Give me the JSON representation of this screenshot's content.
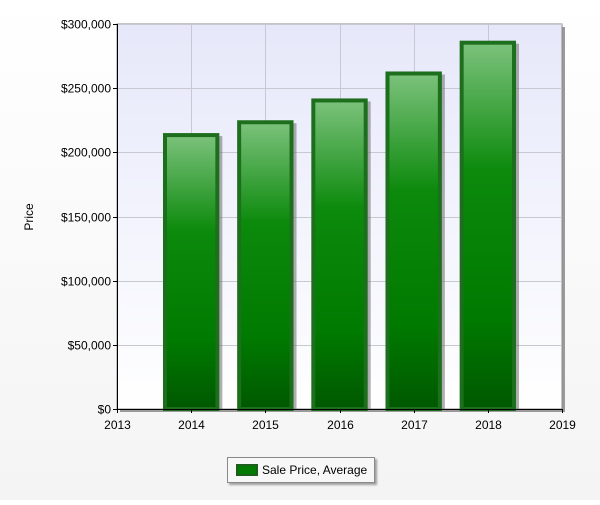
{
  "chart_data": {
    "type": "bar",
    "title": "",
    "xlabel": "",
    "ylabel": "Price",
    "x_ticks": [
      "2013",
      "2014",
      "2015",
      "2016",
      "2017",
      "2018",
      "2019"
    ],
    "xlim": [
      2013,
      2019
    ],
    "y_ticks": [
      "$0",
      "$50,000",
      "$100,000",
      "$150,000",
      "$200,000",
      "$250,000",
      "$300,000"
    ],
    "ylim": [
      0,
      300000
    ],
    "grid": true,
    "legend": "bottom-center",
    "series": [
      {
        "name": "Sale Price, Average",
        "color": "#007a00",
        "points": [
          {
            "x": 2014,
            "y": 215000
          },
          {
            "x": 2015,
            "y": 225000
          },
          {
            "x": 2016,
            "y": 242000
          },
          {
            "x": 2017,
            "y": 263000
          },
          {
            "x": 2018,
            "y": 287000
          }
        ]
      }
    ]
  }
}
